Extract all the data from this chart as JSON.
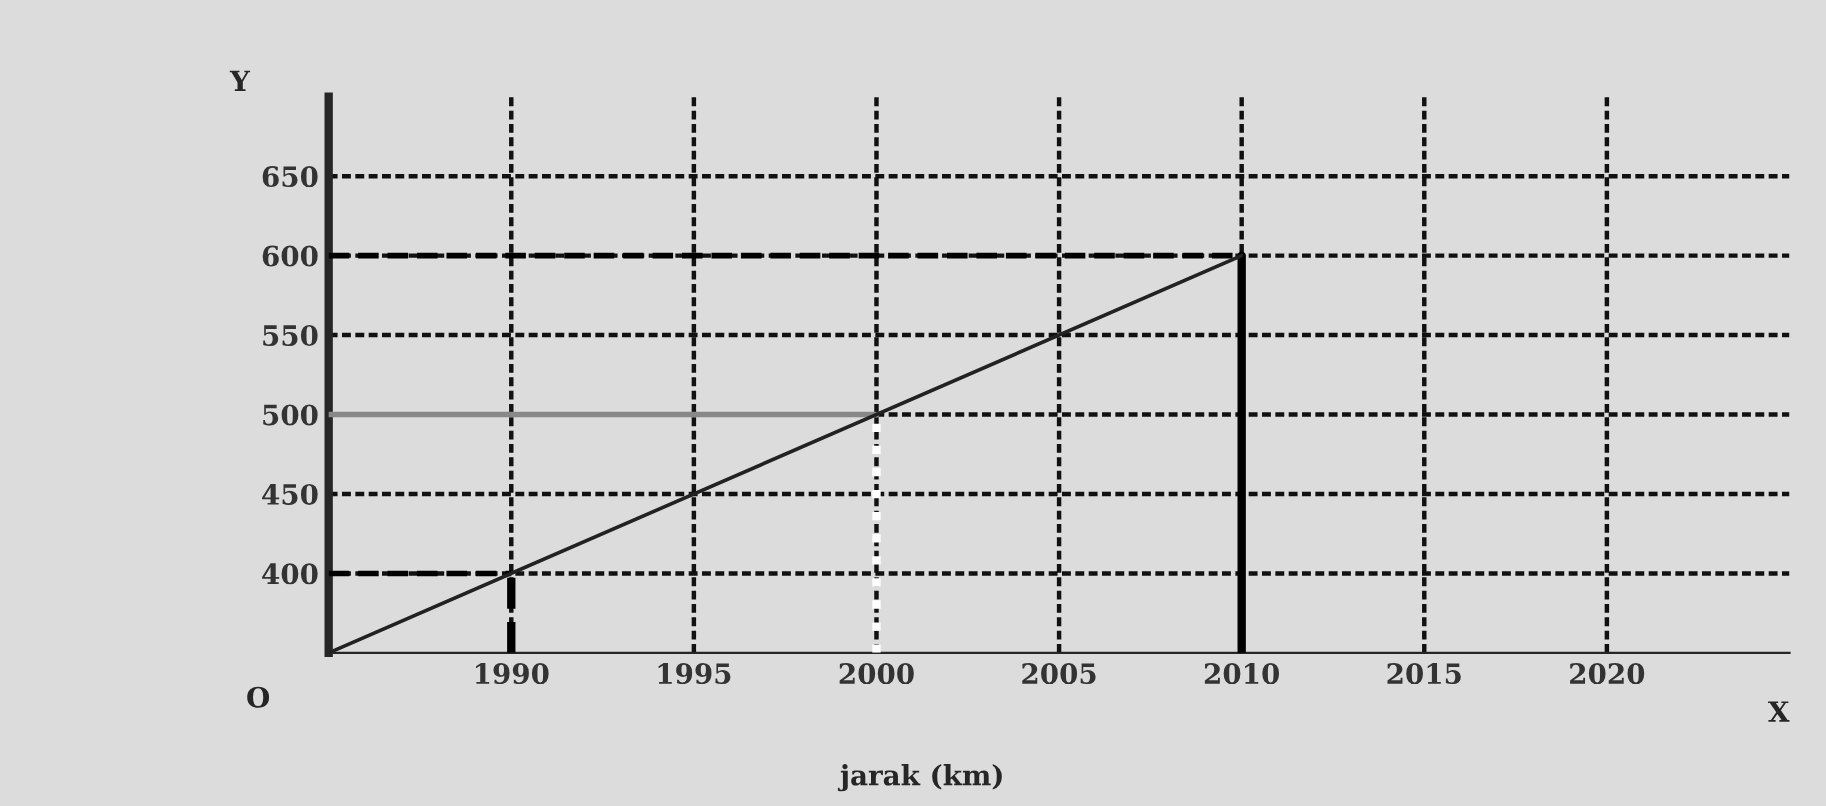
{
  "chart_data": {
    "type": "line",
    "xlabel": "X",
    "ylabel": "Y",
    "x": [
      1985,
      2010
    ],
    "series": [
      {
        "color": "#222222",
        "values": [
          350,
          600
        ]
      }
    ],
    "xlim": [
      1985,
      2025
    ],
    "ylim": [
      350,
      700
    ],
    "xticks": [
      1990,
      1995,
      2000,
      2005,
      2010,
      2015,
      2020
    ],
    "yticks": [
      400,
      450,
      500,
      550,
      600,
      650
    ],
    "grid": true,
    "marker": "none",
    "line_style": "solid",
    "ref_lines": [
      {
        "axis": "y",
        "value": 600,
        "color": "#000000",
        "line_style": "dashed"
      },
      {
        "axis": "y",
        "value": 400,
        "color": "#000000",
        "line_style": "dashed"
      },
      {
        "axis": "y",
        "value": 500,
        "color": "#888888",
        "line_style": "solid"
      },
      {
        "axis": "x",
        "value": 2010,
        "color": "#000000",
        "line_style": "solid"
      },
      {
        "axis": "x",
        "value": 1990,
        "color": "#000000",
        "line_style": "dashed"
      },
      {
        "axis": "x",
        "value": 2000,
        "color": "#ffffff",
        "line_style": "dotted"
      }
    ],
    "annotations": [
      "O",
      "jarak (km)"
    ]
  }
}
